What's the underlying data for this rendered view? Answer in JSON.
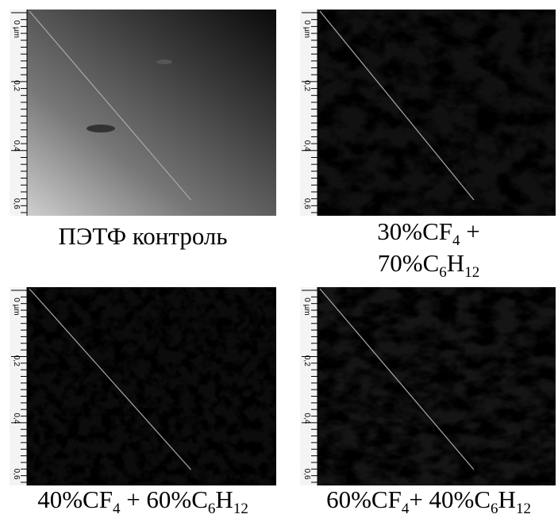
{
  "panels": [
    {
      "ruler": [
        "0 µm",
        "0,2",
        "0,4",
        "0,6"
      ],
      "caption": [
        [
          {
            "text": "ПЭТФ контроль"
          }
        ]
      ]
    },
    {
      "ruler": [
        "0 µm",
        "0,2",
        "0,4",
        "0,6"
      ],
      "caption": [
        [
          {
            "text": "30%CF"
          },
          {
            "sub": "4"
          },
          {
            "text": " +"
          }
        ],
        [
          {
            "text": "70%C"
          },
          {
            "sub": "6"
          },
          {
            "text": "H"
          },
          {
            "sub": "12"
          }
        ]
      ]
    },
    {
      "ruler": [
        "0 µm",
        "0,2",
        "0,4",
        "0,6"
      ],
      "caption": [
        [
          {
            "text": "40%CF"
          },
          {
            "sub": "4"
          },
          {
            "text": " + 60%C"
          },
          {
            "sub": "6"
          },
          {
            "text": "H"
          },
          {
            "sub": "12"
          }
        ]
      ]
    },
    {
      "ruler": [
        "0 µm",
        "0,2",
        "0,4",
        "0,6"
      ],
      "caption": [
        [
          {
            "text": "60%CF"
          },
          {
            "sub": "4"
          },
          {
            "text": "+ 40%C"
          },
          {
            "sub": "6"
          },
          {
            "text": "H"
          },
          {
            "sub": "12"
          }
        ]
      ]
    }
  ]
}
